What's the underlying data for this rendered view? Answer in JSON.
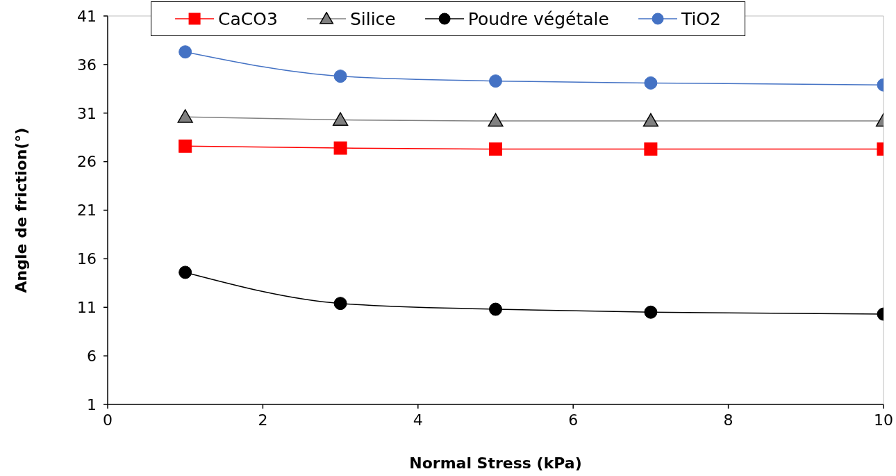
{
  "chart_data": {
    "type": "line",
    "xlabel": "Normal Stress (kPa)",
    "ylabel": "Angle de friction(°)",
    "x": [
      1,
      3,
      5,
      7,
      10
    ],
    "series": [
      {
        "name": "CaCO3",
        "color": "#ff0000",
        "marker": "square",
        "values": [
          27.6,
          27.4,
          27.3,
          27.3,
          27.3
        ]
      },
      {
        "name": "Silice",
        "color": "#808080",
        "marker": "triangle",
        "values": [
          30.6,
          30.3,
          30.2,
          30.2,
          30.2
        ]
      },
      {
        "name": "Poudre végétale",
        "color": "#000000",
        "marker": "circle",
        "values": [
          14.6,
          11.4,
          10.8,
          10.5,
          10.3
        ]
      },
      {
        "name": "TiO2",
        "color": "#4472c4",
        "marker": "circle",
        "values": [
          37.3,
          34.8,
          34.3,
          34.1,
          33.9
        ]
      }
    ],
    "xlim": [
      0,
      10
    ],
    "xticks": [
      0,
      2,
      4,
      6,
      8,
      10
    ],
    "ylim": [
      1,
      41
    ],
    "yticks": [
      1,
      6,
      11,
      16,
      21,
      26,
      31,
      36,
      41
    ],
    "legend": "top"
  }
}
